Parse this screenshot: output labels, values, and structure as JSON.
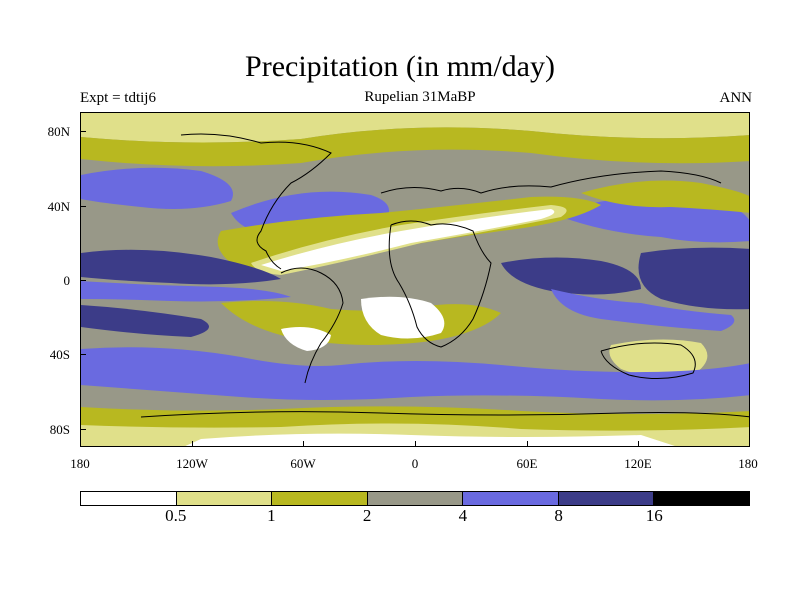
{
  "title": "Precipitation (in mm/day)",
  "left_subtitle": "Expt = tdtij6",
  "center_subtitle": "Rupelian  31MaBP",
  "right_subtitle": "ANN",
  "lat_labels": [
    "80N",
    "40N",
    "0",
    "40S",
    "80S"
  ],
  "lon_labels": [
    "180",
    "120W",
    "60W",
    "0",
    "60E",
    "120E",
    "180"
  ],
  "colorbar": {
    "colors": [
      "#ffffff",
      "#e0e08a",
      "#b8b820",
      "#989888",
      "#6a6ae0",
      "#3c3c88",
      "#000000"
    ],
    "labels": [
      "0.5",
      "1",
      "2",
      "4",
      "8",
      "16"
    ]
  }
}
